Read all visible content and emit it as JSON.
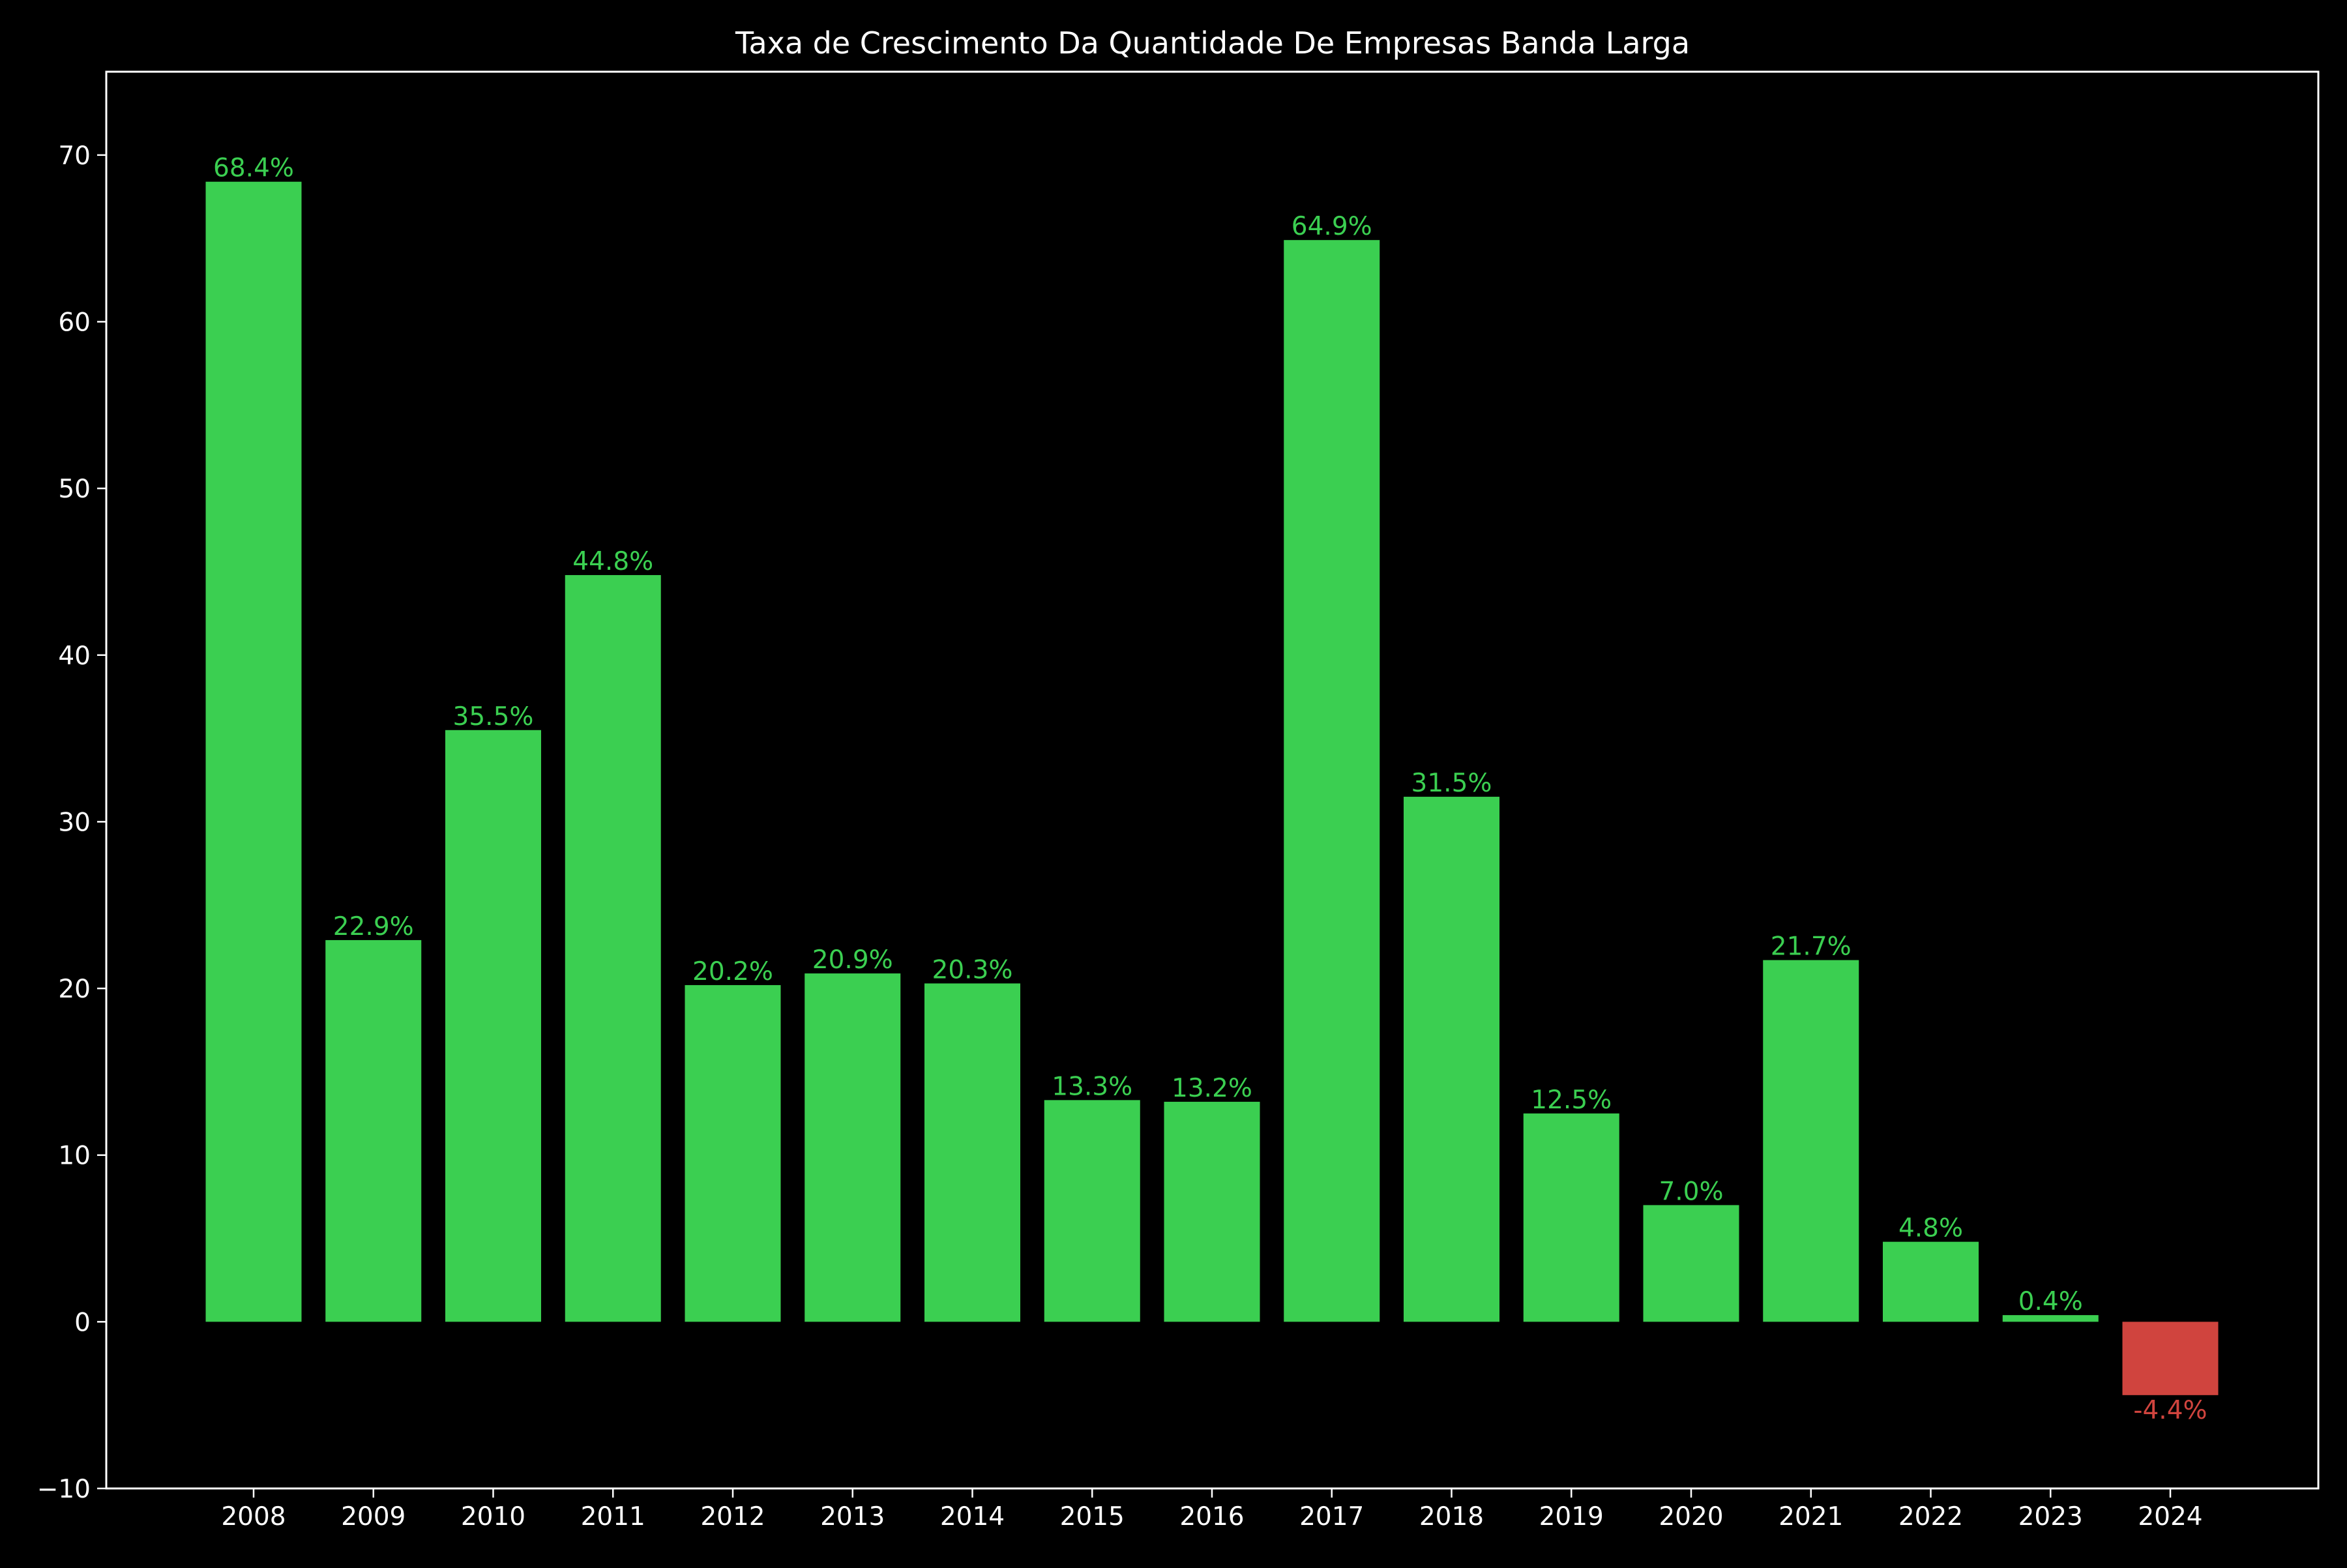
{
  "chart_data": {
    "type": "bar",
    "title": "Taxa de Crescimento Da Quantidade De Empresas Banda Larga",
    "xlabel": "",
    "ylabel": "",
    "categories": [
      "2008",
      "2009",
      "2010",
      "2011",
      "2012",
      "2013",
      "2014",
      "2015",
      "2016",
      "2017",
      "2018",
      "2019",
      "2020",
      "2021",
      "2022",
      "2023",
      "2024"
    ],
    "values": [
      68.4,
      22.9,
      35.5,
      44.8,
      20.2,
      20.9,
      20.3,
      13.3,
      13.2,
      64.9,
      31.5,
      12.5,
      7.0,
      21.7,
      4.8,
      0.4,
      -4.4
    ],
    "value_labels": [
      "68.4%",
      "22.9%",
      "35.5%",
      "44.8%",
      "20.2%",
      "20.9%",
      "20.3%",
      "13.3%",
      "13.2%",
      "64.9%",
      "31.5%",
      "12.5%",
      "7.0%",
      "21.7%",
      "4.8%",
      "0.4%",
      "-4.4%"
    ],
    "ylim": [
      -10,
      75
    ],
    "yticks": [
      -10,
      0,
      10,
      20,
      30,
      40,
      50,
      60,
      70
    ],
    "ytick_labels": [
      "−10",
      "0",
      "10",
      "20",
      "30",
      "40",
      "50",
      "60",
      "70"
    ],
    "grid": false,
    "colors": {
      "background": "#000000",
      "axes": "#ffffff",
      "text": "#ffffff",
      "positive": "#3bcf51",
      "negative": "#d0443e"
    }
  }
}
